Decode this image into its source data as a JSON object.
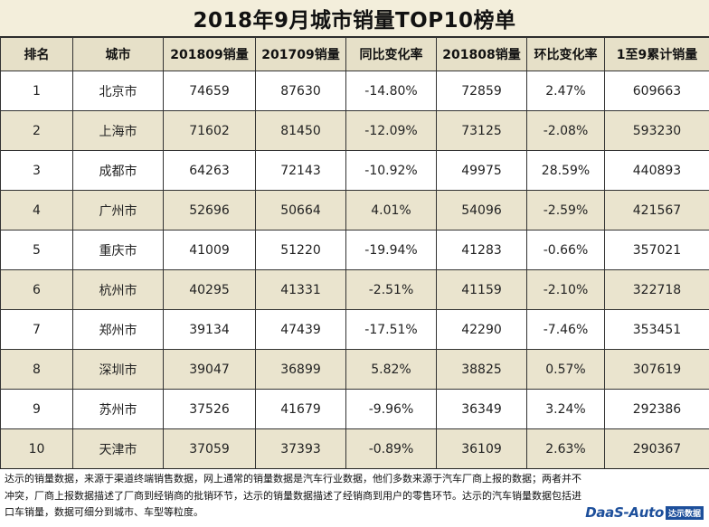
{
  "title": "2018年9月城市销量TOP10榜单",
  "headers": [
    "排名",
    "城市",
    "201809销量",
    "201709销量",
    "同比变化率",
    "201808销量",
    "环比变化率",
    "1至9累计销量"
  ],
  "rows": [
    [
      "1",
      "北京市",
      "74659",
      "87630",
      "-14.80%",
      "72859",
      "2.47%",
      "609663"
    ],
    [
      "2",
      "上海市",
      "71602",
      "81450",
      "-12.09%",
      "73125",
      "-2.08%",
      "593230"
    ],
    [
      "3",
      "成都市",
      "64263",
      "72143",
      "-10.92%",
      "49975",
      "28.59%",
      "440893"
    ],
    [
      "4",
      "广州市",
      "52696",
      "50664",
      "4.01%",
      "54096",
      "-2.59%",
      "421567"
    ],
    [
      "5",
      "重庆市",
      "41009",
      "51220",
      "-19.94%",
      "41283",
      "-0.66%",
      "357021"
    ],
    [
      "6",
      "杭州市",
      "40295",
      "41331",
      "-2.51%",
      "41159",
      "-2.10%",
      "322718"
    ],
    [
      "7",
      "郑州市",
      "39134",
      "47439",
      "-17.51%",
      "42290",
      "-7.46%",
      "353451"
    ],
    [
      "8",
      "深圳市",
      "39047",
      "36899",
      "5.82%",
      "38825",
      "0.57%",
      "307619"
    ],
    [
      "9",
      "苏州市",
      "37526",
      "41679",
      "-9.96%",
      "36349",
      "3.24%",
      "292386"
    ],
    [
      "10",
      "天津市",
      "37059",
      "37393",
      "-0.89%",
      "36109",
      "2.63%",
      "290367"
    ]
  ],
  "footer": {
    "note": "达示的销量数据，来源于渠道终端销售数据，网上通常的销量数据是汽车行业数据，他们多数来源于汽车厂商上报的数据；两者并不冲突，厂商上报数据描述了厂商到经销商的批销环节，达示的销量数据描述了经销商到用户的零售环节。达示的汽车销量数据包括进口车销量，数据可细分到城市、车型等粒度。",
    "logo_main": "DaaS-Auto",
    "logo_sub": "达示数据"
  },
  "colors": {
    "title_bg": "#f3eedb",
    "header_bg": "#e6e0c8",
    "stripe_bg": "#eae4ce",
    "logo": "#1d4f9b"
  }
}
